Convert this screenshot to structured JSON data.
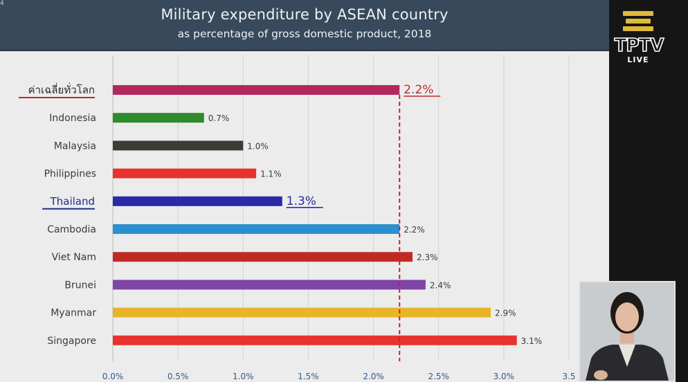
{
  "header": {
    "title": "Military expenditure by ASEAN country",
    "subtitle": "as percentage of gross domestic product, 2018"
  },
  "broadcast": {
    "logo_text": "TPTV",
    "live_label": "LIVE",
    "corner_mark": "4"
  },
  "colors": {
    "world_average": "#b3275c",
    "indonesia": "#2e8b2e",
    "malaysia": "#3c3c36",
    "philippines": "#e8322e",
    "thailand": "#2a2aa6",
    "cambodia": "#2b8fd0",
    "viet_nam": "#c02a24",
    "brunei": "#7e45a8",
    "myanmar": "#e8b428",
    "singapore": "#e8322e",
    "reference_line": "#c0282a",
    "header_bg": "#37495a"
  },
  "chart_data": {
    "type": "bar",
    "orientation": "horizontal",
    "title": "Military expenditure by ASEAN country",
    "subtitle": "as percentage of gross domestic product, 2018",
    "categories": [
      "ค่าเฉลี่ยทั่วโลก",
      "Indonesia",
      "Malaysia",
      "Philippines",
      "Thailand",
      "Cambodia",
      "Viet Nam",
      "Brunei",
      "Myanmar",
      "Singapore"
    ],
    "values": [
      2.2,
      0.7,
      1.0,
      1.1,
      1.3,
      2.2,
      2.3,
      2.4,
      2.9,
      3.1
    ],
    "value_labels": [
      "2.2%",
      "0.7%",
      "1.0%",
      "1.1%",
      "1.3%",
      "2.2%",
      "2.3%",
      "2.4%",
      "2.9%",
      "3.1%"
    ],
    "highlighted": [
      "ค่าเฉลี่ยทั่วโลก",
      "Thailand"
    ],
    "reference_line": {
      "value": 2.2,
      "style": "dashed"
    },
    "x_ticks": [
      "0.0%",
      "0.5%",
      "1.0%",
      "1.5%",
      "2.0%",
      "2.5%",
      "3.0%",
      "3.5"
    ],
    "xlim": [
      0,
      3.5
    ],
    "grid": true,
    "xlabel": "",
    "ylabel": ""
  }
}
